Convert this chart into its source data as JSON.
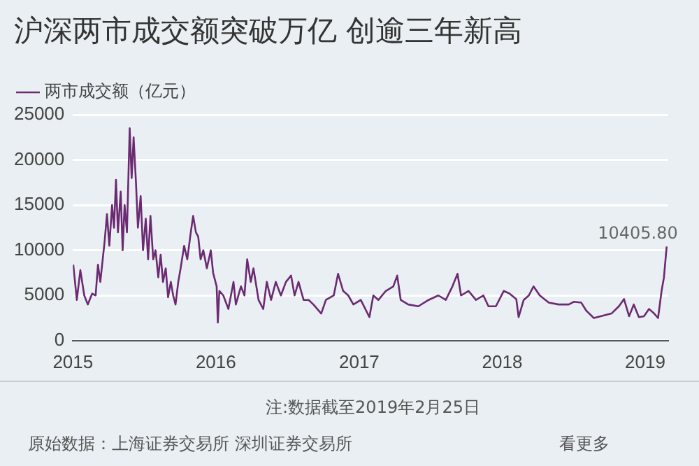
{
  "chart_data": {
    "type": "line",
    "title": "沪深两市成交额突破万亿 创逾三年新高",
    "x": [
      "2015-01-02",
      "2015-01-11",
      "2015-01-20",
      "2015-01-30",
      "2015-02-08",
      "2015-02-19",
      "2015-02-28",
      "2015-03-06",
      "2015-03-12",
      "2015-03-23",
      "2015-03-29",
      "2015-04-04",
      "2015-04-11",
      "2015-04-16",
      "2015-04-21",
      "2015-04-26",
      "2015-05-03",
      "2015-05-08",
      "2015-05-13",
      "2015-05-19",
      "2015-05-26",
      "2015-05-31",
      "2015-06-05",
      "2015-06-11",
      "2015-06-16",
      "2015-06-23",
      "2015-06-29",
      "2015-07-06",
      "2015-07-12",
      "2015-07-18",
      "2015-07-25",
      "2015-07-31",
      "2015-08-07",
      "2015-08-13",
      "2015-08-19",
      "2015-08-26",
      "2015-09-01",
      "2015-09-08",
      "2015-09-14",
      "2015-09-20",
      "2015-09-27",
      "2015-10-03",
      "2015-10-12",
      "2015-10-20",
      "2015-10-29",
      "2015-11-04",
      "2015-11-11",
      "2015-11-17",
      "2015-11-23",
      "2015-11-30",
      "2015-12-09",
      "2015-12-19",
      "2015-12-25",
      "2016-01-03",
      "2016-01-06",
      "2016-01-10",
      "2016-01-20",
      "2016-02-02",
      "2016-02-15",
      "2016-02-21",
      "2016-03-05",
      "2016-03-14",
      "2016-03-21",
      "2016-03-30",
      "2016-04-06",
      "2016-04-19",
      "2016-05-01",
      "2016-05-10",
      "2016-05-21",
      "2016-06-02",
      "2016-06-15",
      "2016-06-28",
      "2016-07-11",
      "2016-07-20",
      "2016-07-30",
      "2016-08-12",
      "2016-08-25",
      "2016-09-06",
      "2016-09-26",
      "2016-10-08",
      "2016-10-28",
      "2016-11-08",
      "2016-11-21",
      "2016-12-04",
      "2016-12-17",
      "2017-01-05",
      "2017-01-27",
      "2017-02-06",
      "2017-02-19",
      "2017-03-10",
      "2017-03-29",
      "2017-04-08",
      "2017-04-17",
      "2017-05-06",
      "2017-06-01",
      "2017-06-27",
      "2017-07-22",
      "2017-08-10",
      "2017-08-27",
      "2017-09-09",
      "2017-09-18",
      "2017-10-07",
      "2017-10-26",
      "2017-11-14",
      "2017-11-27",
      "2017-12-16",
      "2018-01-05",
      "2018-01-20",
      "2018-02-06",
      "2018-02-12",
      "2018-02-25",
      "2018-03-10",
      "2018-03-22",
      "2018-04-07",
      "2018-04-30",
      "2018-05-25",
      "2018-06-20",
      "2018-07-03",
      "2018-07-22",
      "2018-08-04",
      "2018-08-23",
      "2018-09-18",
      "2018-10-07",
      "2018-10-26",
      "2018-11-08",
      "2018-11-21",
      "2018-12-03",
      "2018-12-16",
      "2018-12-29",
      "2019-01-11",
      "2019-01-24",
      "2019-02-03",
      "2019-02-12",
      "2019-02-18",
      "2019-02-25"
    ],
    "series": [
      {
        "name": "两市成交额（亿元）",
        "color": "#6b2a72",
        "values": [
          8400,
          4500,
          7800,
          5000,
          4000,
          5200,
          5000,
          8400,
          6500,
          11000,
          14000,
          10500,
          15000,
          12500,
          17800,
          12000,
          16500,
          10000,
          15000,
          12000,
          23500,
          18000,
          22500,
          17500,
          12500,
          16000,
          10000,
          13500,
          9000,
          13800,
          9000,
          10000,
          7000,
          9500,
          6500,
          8000,
          4800,
          6500,
          5000,
          4000,
          6500,
          8000,
          10500,
          9000,
          12000,
          13800,
          12000,
          11500,
          9000,
          10000,
          8000,
          10000,
          7500,
          6000,
          2000,
          5500,
          5000,
          3500,
          6500,
          4000,
          6000,
          5000,
          9000,
          6500,
          8000,
          4500,
          3500,
          6500,
          4500,
          6500,
          5000,
          6500,
          7200,
          5000,
          6500,
          4500,
          4500,
          4000,
          3000,
          4500,
          5000,
          7400,
          5500,
          5000,
          4000,
          4500,
          2600,
          5000,
          4500,
          5500,
          6000,
          7200,
          4500,
          4000,
          3800,
          4500,
          5000,
          4500,
          6000,
          7400,
          5000,
          5500,
          4500,
          5000,
          3800,
          3800,
          5500,
          5200,
          4600,
          2600,
          4500,
          5000,
          6000,
          5000,
          4200,
          4000,
          4000,
          4300,
          4200,
          3300,
          2500,
          2800,
          3000,
          3800,
          4600,
          2700,
          4000,
          2600,
          2700,
          3500,
          3000,
          2500,
          5500,
          7000,
          10405.8
        ]
      }
    ],
    "xlim": [
      "2015-01-01",
      "2019-03-01"
    ],
    "xticks": [
      "2015",
      "2016",
      "2017",
      "2018",
      "2019"
    ],
    "ylim": [
      0,
      25000
    ],
    "yticks": [
      0,
      5000,
      10000,
      15000,
      20000,
      25000
    ],
    "grid": "y",
    "legend": "top left",
    "marker": "none",
    "line_style": "solid",
    "annotations": [
      {
        "text": "10405.80",
        "x": "2019-02-25",
        "y": 10405.8
      },
      "注:数据截至2019年2月25日",
      "原始数据：上海证券交易所 深圳证券交易所",
      "看更多"
    ]
  }
}
